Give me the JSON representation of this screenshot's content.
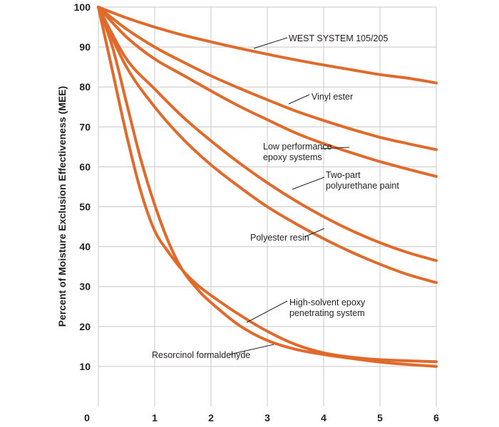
{
  "chart_data": {
    "type": "line",
    "title": "",
    "xlabel": "",
    "ylabel": "Percent of Moisture Exclusion Effectiveness (MEE)",
    "xlim": [
      0,
      6
    ],
    "ylim": [
      0,
      100
    ],
    "grid": true,
    "origin_label": "0",
    "x_ticks": [
      {
        "value": 1,
        "label": "1"
      },
      {
        "value": 2,
        "label": "2"
      },
      {
        "value": 3,
        "label": "3"
      },
      {
        "value": 4,
        "label": "4"
      },
      {
        "value": 5,
        "label": "5"
      },
      {
        "value": 6,
        "label": "6"
      }
    ],
    "y_ticks": [
      {
        "value": 10,
        "label": "10"
      },
      {
        "value": 20,
        "label": "20"
      },
      {
        "value": 30,
        "label": "30"
      },
      {
        "value": 40,
        "label": "40"
      },
      {
        "value": 50,
        "label": "50"
      },
      {
        "value": 60,
        "label": "60"
      },
      {
        "value": 70,
        "label": "70"
      },
      {
        "value": 80,
        "label": "80"
      },
      {
        "value": 90,
        "label": "90"
      },
      {
        "value": 100,
        "label": "100"
      }
    ],
    "line_color": "#e06a2c",
    "series": [
      {
        "name": "WEST SYSTEM 105/205",
        "x": [
          0,
          0.5,
          1,
          1.5,
          2,
          2.5,
          3,
          3.5,
          4,
          4.5,
          5,
          5.5,
          6
        ],
        "y": [
          100,
          97.3,
          95,
          93,
          91.3,
          89.7,
          88.2,
          86.8,
          85.5,
          84.3,
          83.1,
          82.2,
          81
        ]
      },
      {
        "name": "Vinyl ester",
        "x": [
          0,
          0.5,
          1,
          1.5,
          2,
          2.5,
          3,
          3.5,
          4,
          4.5,
          5,
          5.5,
          6
        ],
        "y": [
          100,
          94.5,
          90,
          86.3,
          82.8,
          79.7,
          76.8,
          74,
          71.6,
          69.4,
          67.4,
          65.8,
          64.3
        ]
      },
      {
        "name": "Low performance epoxy systems",
        "x": [
          0,
          0.5,
          1,
          1.5,
          2,
          2.5,
          3,
          3.5,
          4,
          4.5,
          5,
          5.5,
          6
        ],
        "y": [
          100,
          92.5,
          87,
          83,
          79,
          75.2,
          71.8,
          68.5,
          65.8,
          63.5,
          61.3,
          59.4,
          57.6
        ]
      },
      {
        "name": "Two-part polyurethane paint",
        "x": [
          0,
          0.5,
          1,
          1.5,
          2,
          2.5,
          3,
          3.5,
          4,
          4.5,
          5,
          5.5,
          6
        ],
        "y": [
          100,
          87,
          79.5,
          72.5,
          66.5,
          61,
          56,
          51.5,
          47.5,
          44,
          41,
          38.5,
          36.5
        ]
      },
      {
        "name": "Polyester resin",
        "x": [
          0,
          0.5,
          1,
          1.5,
          2,
          2.5,
          3,
          3.5,
          4,
          4.5,
          5,
          5.5,
          6
        ],
        "y": [
          100,
          85,
          75,
          67,
          60.5,
          55,
          50,
          45.8,
          42,
          38.6,
          35.6,
          33,
          31
        ]
      },
      {
        "name": "High-solvent epoxy penetrating system",
        "x": [
          0,
          0.25,
          0.5,
          0.75,
          1,
          1.25,
          1.5,
          1.75,
          2,
          2.5,
          3,
          3.5,
          4,
          4.5,
          5,
          5.5,
          6
        ],
        "y": [
          100,
          84,
          68,
          54,
          44,
          38.5,
          34,
          30.5,
          27.8,
          23,
          18.8,
          15.5,
          13.4,
          12.3,
          11.7,
          11.4,
          11.2
        ]
      },
      {
        "name": "Resorcinol formaldehyde",
        "x": [
          0,
          0.25,
          0.5,
          0.75,
          1,
          1.25,
          1.5,
          1.75,
          2,
          2.5,
          3,
          3.5,
          4,
          4.5,
          5,
          5.5,
          6
        ],
        "y": [
          100,
          90,
          76,
          62,
          50.5,
          41,
          34,
          29.5,
          26,
          20.3,
          16.5,
          14.3,
          13,
          12,
          11.1,
          10.5,
          10
        ]
      }
    ],
    "annotations": [
      {
        "lines": [
          "WEST SYSTEM 105/205"
        ],
        "anchor": "start"
      },
      {
        "lines": [
          "Vinyl ester"
        ],
        "anchor": "start"
      },
      {
        "lines": [
          "Low performance",
          "epoxy systems"
        ],
        "anchor": "start"
      },
      {
        "lines": [
          "Two-part",
          "polyurethane paint"
        ],
        "anchor": "start"
      },
      {
        "lines": [
          "Polyester resin"
        ],
        "anchor": "start"
      },
      {
        "lines": [
          "High-solvent epoxy",
          "penetrating system"
        ],
        "anchor": "start"
      },
      {
        "lines": [
          "Resorcinol formaldehyde"
        ],
        "anchor": "start"
      }
    ]
  }
}
